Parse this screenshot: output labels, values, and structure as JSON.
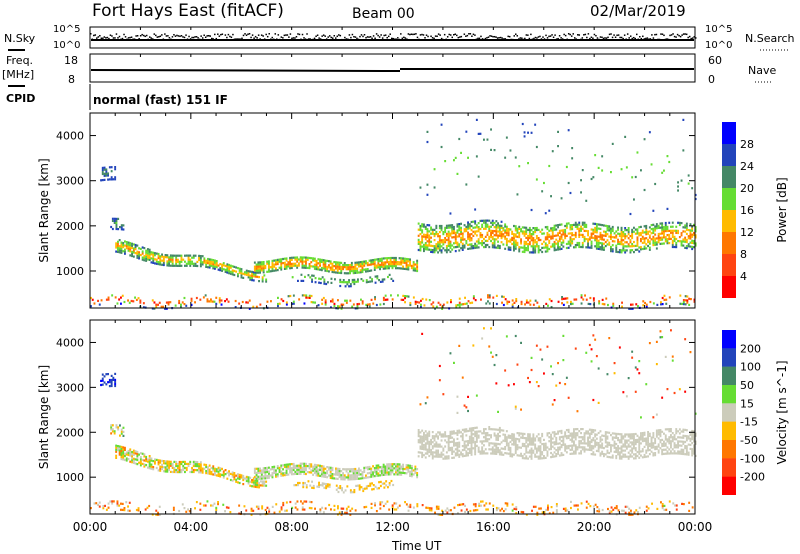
{
  "header": {
    "title": "Fort Hays East (fitACF)",
    "beam": "Beam 00",
    "date": "02/Mar/2019"
  },
  "panels": {
    "nsky_label": "N.Sky",
    "nsearch_label": "N.Search",
    "noise_ticks": [
      "10^5",
      "10^0"
    ],
    "freq_label": "Freq.",
    "freq_unit": "[MHz]",
    "freq_ticks": [
      "18",
      "8"
    ],
    "nave_label": "Nave",
    "nave_ticks": [
      "60",
      "0"
    ],
    "cpid_label": "CPID",
    "cpid_value": "normal (fast) 151 IF"
  },
  "colors": {
    "power": [
      "#0000ff",
      "#2244bb",
      "#448866",
      "#66dd33",
      "#ffbb00",
      "#ff7700",
      "#ff4411",
      "#ff0000"
    ],
    "velocity": [
      "#0000ff",
      "#2244bb",
      "#448866",
      "#66dd33",
      "#ccccbb",
      "#ffbb00",
      "#ff7700",
      "#ff4411",
      "#ff0000"
    ]
  },
  "chart_data": [
    {
      "type": "heatmap",
      "title": "Power",
      "ylabel": "Slant Range [km]",
      "xlabel": "Time UT",
      "xlim": [
        0,
        24
      ],
      "ylim": [
        180,
        4500
      ],
      "yticks": [
        "1000",
        "2000",
        "3000",
        "4000"
      ],
      "colorbar": {
        "label": "Power [dB]",
        "ticks": [
          "4",
          "8",
          "12",
          "16",
          "20",
          "24",
          "28"
        ],
        "range": [
          0,
          32
        ]
      },
      "regions": [
        {
          "t": [
            0.4,
            1.0
          ],
          "r0": [
            2950,
            2950
          ],
          "r1": [
            3250,
            3250
          ],
          "v": [
            4,
            10
          ],
          "d": 0.5
        },
        {
          "t": [
            0.8,
            1.3
          ],
          "r0": [
            1850,
            1850
          ],
          "r1": [
            2100,
            2100
          ],
          "v": [
            4,
            12
          ],
          "d": 0.5
        },
        {
          "t": [
            1.0,
            7.0
          ],
          "r0": [
            1350,
            780
          ],
          "r1": [
            1650,
            950
          ],
          "v": [
            6,
            20
          ],
          "d": 0.7
        },
        {
          "t": [
            6.5,
            13.0
          ],
          "r0": [
            1000,
            980
          ],
          "r1": [
            1250,
            1220
          ],
          "v": [
            8,
            22
          ],
          "d": 0.75
        },
        {
          "t": [
            8.0,
            12.0
          ],
          "r0": [
            700,
            700
          ],
          "r1": [
            880,
            880
          ],
          "v": [
            4,
            14
          ],
          "d": 0.35
        },
        {
          "t": [
            13.0,
            24.0
          ],
          "r0": [
            1450,
            1450
          ],
          "r1": [
            2050,
            2000
          ],
          "v": [
            6,
            22
          ],
          "d": 0.55
        },
        {
          "t": [
            0,
            24
          ],
          "r0": [
            200,
            200
          ],
          "r1": [
            420,
            420
          ],
          "v": [
            2,
            30
          ],
          "d": 0.2
        },
        {
          "t": [
            13,
            24
          ],
          "r0": [
            2300,
            2300
          ],
          "r1": [
            4300,
            4300
          ],
          "v": [
            4,
            14
          ],
          "d": 0.015
        }
      ]
    },
    {
      "type": "heatmap",
      "title": "Velocity",
      "ylabel": "Slant Range [km]",
      "xlabel": "Time UT",
      "xlim": [
        0,
        24
      ],
      "ylim": [
        180,
        4500
      ],
      "yticks": [
        "1000",
        "2000",
        "3000",
        "4000"
      ],
      "xticks": [
        "00:00",
        "04:00",
        "08:00",
        "12:00",
        "16:00",
        "20:00",
        "00:00"
      ],
      "colorbar": {
        "label": "Velocity [m s^-1]",
        "ticks": [
          "200",
          "100",
          "50",
          "15",
          "-15",
          "-50",
          "-100",
          "-200"
        ]
      },
      "regions": [
        {
          "t": [
            0.4,
            1.0
          ],
          "r0": [
            2950,
            2950
          ],
          "r1": [
            3250,
            3250
          ],
          "v": [
            100,
            250
          ],
          "d": 0.5
        },
        {
          "t": [
            0.8,
            1.3
          ],
          "r0": [
            1850,
            1850
          ],
          "r1": [
            2100,
            2100
          ],
          "v": [
            -60,
            60
          ],
          "d": 0.5
        },
        {
          "t": [
            1.0,
            7.0
          ],
          "r0": [
            1350,
            780
          ],
          "r1": [
            1650,
            950
          ],
          "v": [
            -60,
            40
          ],
          "d": 0.7
        },
        {
          "t": [
            6.5,
            13.0
          ],
          "r0": [
            1000,
            980
          ],
          "r1": [
            1250,
            1220
          ],
          "v": [
            -20,
            30
          ],
          "d": 0.75
        },
        {
          "t": [
            8.0,
            12.0
          ],
          "r0": [
            700,
            700
          ],
          "r1": [
            880,
            880
          ],
          "v": [
            -40,
            10
          ],
          "d": 0.35
        },
        {
          "t": [
            13.0,
            24.0
          ],
          "r0": [
            1450,
            1450
          ],
          "r1": [
            2050,
            2000
          ],
          "v": [
            -14,
            14
          ],
          "d": 0.55
        },
        {
          "t": [
            0,
            24
          ],
          "r0": [
            200,
            200
          ],
          "r1": [
            420,
            420
          ],
          "v": [
            -120,
            20
          ],
          "d": 0.2
        },
        {
          "t": [
            13,
            24
          ],
          "r0": [
            2300,
            2300
          ],
          "r1": [
            4300,
            4300
          ],
          "v": [
            -250,
            100
          ],
          "d": 0.015
        }
      ]
    }
  ]
}
